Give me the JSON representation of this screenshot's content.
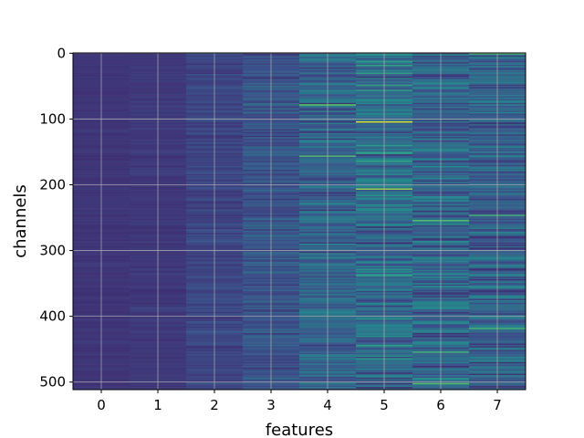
{
  "chart_data": {
    "type": "heatmap",
    "title": "",
    "xlabel": "features",
    "ylabel": "channels",
    "x_ticks": [
      "0",
      "1",
      "2",
      "3",
      "4",
      "5",
      "6",
      "7"
    ],
    "y_ticks": [
      "0",
      "100",
      "200",
      "300",
      "400",
      "500"
    ],
    "n_columns": 8,
    "n_rows": 512,
    "xlim": [
      -0.5,
      7.5
    ],
    "ylim": [
      511.5,
      -0.5
    ],
    "grid": true,
    "colormap": "viridis",
    "column_mean_intensity": [
      0.16,
      0.17,
      0.21,
      0.26,
      0.31,
      0.35,
      0.32,
      0.31
    ],
    "column_spread": [
      0.015,
      0.02,
      0.04,
      0.07,
      0.11,
      0.15,
      0.13,
      0.12
    ],
    "highlight_rows": [
      {
        "column": 4,
        "channel": 78,
        "value": 0.75
      },
      {
        "column": 4,
        "channel": 157,
        "value": 0.7
      },
      {
        "column": 5,
        "channel": 104,
        "value": 0.95
      },
      {
        "column": 5,
        "channel": 207,
        "value": 0.85
      },
      {
        "column": 6,
        "channel": 254,
        "value": 0.7
      },
      {
        "column": 6,
        "channel": 454,
        "value": 0.65
      },
      {
        "column": 6,
        "channel": 503,
        "value": 0.7
      },
      {
        "column": 7,
        "channel": 0,
        "value": 0.75
      },
      {
        "column": 7,
        "channel": 247,
        "value": 0.65
      },
      {
        "column": 7,
        "channel": 418,
        "value": 0.65
      }
    ]
  }
}
